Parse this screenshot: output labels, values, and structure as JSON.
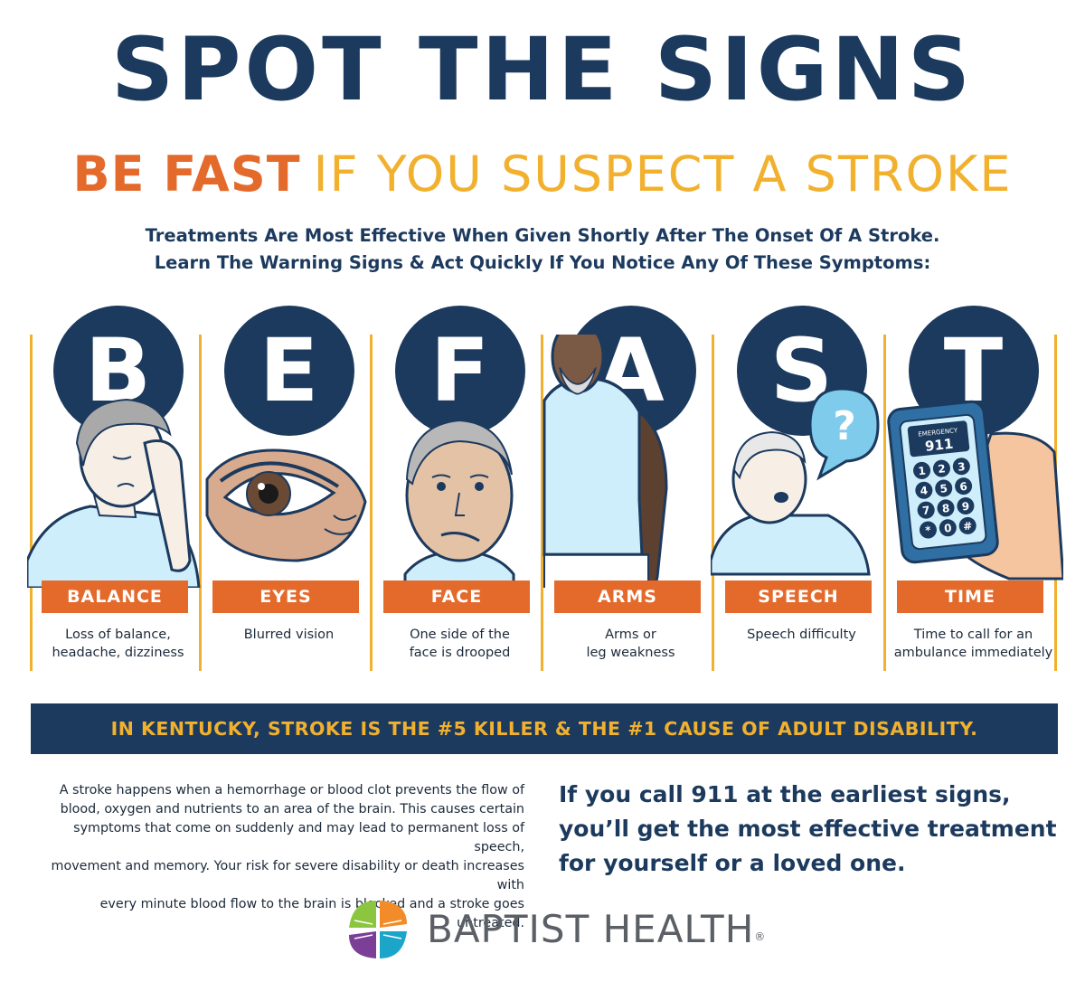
{
  "header": {
    "title": "SPOT THE SIGNS",
    "subtitle_emphasis": "BE FAST",
    "subtitle_rest": "IF YOU SUSPECT A STROKE",
    "intro_line1": "Treatments Are Most Effective When Given Shortly After The Onset Of A Stroke.",
    "intro_line2": "Learn The Warning Signs & Act Quickly If You Notice Any Of These Symptoms:"
  },
  "signs": [
    {
      "letter": "B",
      "label": "BALANCE",
      "desc_line1": "Loss of balance,",
      "desc_line2": "headache, dizziness"
    },
    {
      "letter": "E",
      "label": "EYES",
      "desc_line1": "Blurred vision",
      "desc_line2": ""
    },
    {
      "letter": "F",
      "label": "FACE",
      "desc_line1": "One side of the",
      "desc_line2": "face is drooped"
    },
    {
      "letter": "A",
      "label": "ARMS",
      "desc_line1": "Arms or",
      "desc_line2": "leg weakness"
    },
    {
      "letter": "S",
      "label": "SPEECH",
      "desc_line1": "Speech difficulty",
      "desc_line2": ""
    },
    {
      "letter": "T",
      "label": "TIME",
      "desc_line1": "Time to call for an",
      "desc_line2": "ambulance immediately"
    }
  ],
  "phone": {
    "screen_label": "EMERGENCY",
    "screen_number": "911",
    "keys": [
      "1",
      "2",
      "3",
      "4",
      "5",
      "6",
      "7",
      "8",
      "9",
      "*",
      "0",
      "#"
    ]
  },
  "speech_bubble": "?",
  "banner": "IN KENTUCKY, STROKE IS THE #5 KILLER & THE #1 CAUSE OF ADULT DISABILITY.",
  "body": {
    "line1": "A stroke happens when a hemorrhage or blood clot prevents the flow of",
    "line2": "blood, oxygen and nutrients to an area of the brain. This causes certain",
    "line3": "symptoms that come on suddenly and may lead to permanent loss of speech,",
    "line4": "movement and memory. Your risk for severe disability or death increases with",
    "line5": "every minute blood flow to the brain is blocked and a stroke goes untreated."
  },
  "callout": {
    "line1": "If you call 911 at the earliest signs,",
    "line2": "you’ll get the most effective treatment",
    "line3": "for yourself or a loved one."
  },
  "logo": {
    "text": "BAPTIST HEALTH",
    "mark": "®"
  },
  "colors": {
    "navy": "#1c3a5e",
    "orange": "#e46a2c",
    "gold": "#f1b12f",
    "light_blue": "#cfeefb",
    "sky": "#7fcbec"
  }
}
